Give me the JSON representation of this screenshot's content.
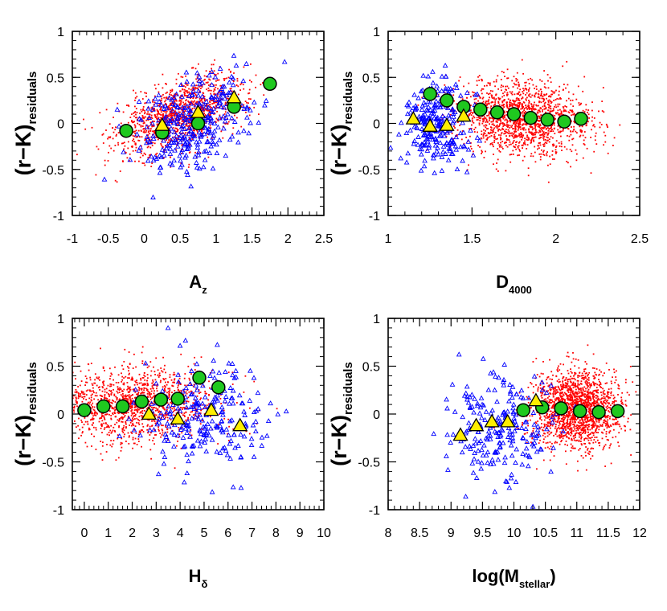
{
  "colors": {
    "dots": "#ff0000",
    "triangles_stroke": "#0000ff",
    "circle_fill": "#1fc81f",
    "triangle_fill": "#ffee00",
    "marker_stroke": "#000000"
  },
  "chart_data": [
    {
      "type": "scatter",
      "xlabel": {
        "main": "A",
        "sub": "z"
      },
      "ylabel": {
        "main": "(r−K)",
        "sub": "residuals"
      },
      "xlim": [
        -1,
        2.5
      ],
      "ylim": [
        -1,
        1
      ],
      "xticks": [
        -1,
        -0.5,
        0,
        0.5,
        1,
        1.5,
        2,
        2.5
      ],
      "xtick_labels": [
        "-1",
        "-0.5",
        "0",
        "0.5",
        "1",
        "1.5",
        "2",
        "2.5"
      ],
      "yticks": [
        1,
        0.5,
        0,
        -0.5,
        -1
      ],
      "ytick_labels": [
        "1",
        "0.5",
        "0",
        "-0.5",
        "-1"
      ],
      "scatter_red": {
        "center": [
          0.5,
          0.1
        ],
        "spread": [
          0.45,
          0.18
        ],
        "count": 1300,
        "slope": 0.25
      },
      "scatter_blue": {
        "center": [
          0.7,
          0.0
        ],
        "spread": [
          0.4,
          0.25
        ],
        "count": 320,
        "slope": 0.25
      },
      "series": [
        {
          "marker": "circle",
          "x": [
            -0.25,
            0.25,
            0.75,
            1.25,
            1.75
          ],
          "y": [
            -0.08,
            -0.1,
            0.0,
            0.18,
            0.43
          ]
        },
        {
          "marker": "triangle",
          "x": [
            0.25,
            0.75,
            1.25
          ],
          "y": [
            -0.02,
            0.12,
            0.28
          ]
        }
      ]
    },
    {
      "type": "scatter",
      "xlabel": {
        "main": "D",
        "sub": "4000"
      },
      "ylabel": {
        "main": "(r−K)",
        "sub": "residuals"
      },
      "xlim": [
        1,
        2.5
      ],
      "ylim": [
        -1,
        1
      ],
      "xticks": [
        1,
        1.5,
        2,
        2.5
      ],
      "xtick_labels": [
        "1",
        "1.5",
        "2",
        "2.5"
      ],
      "yticks": [
        1,
        0.5,
        0,
        -0.5,
        -1
      ],
      "ytick_labels": [
        "1",
        "0.5",
        "0",
        "-0.5",
        "-1"
      ],
      "scatter_red": {
        "center": [
          1.8,
          0.05
        ],
        "spread": [
          0.2,
          0.2
        ],
        "count": 1600,
        "slope": -0.1
      },
      "scatter_blue": {
        "center": [
          1.3,
          0.0
        ],
        "spread": [
          0.1,
          0.25
        ],
        "count": 260,
        "slope": 0.0
      },
      "series": [
        {
          "marker": "circle",
          "x": [
            1.25,
            1.35,
            1.45,
            1.55,
            1.65,
            1.75,
            1.85,
            1.95,
            2.05,
            2.15
          ],
          "y": [
            0.32,
            0.25,
            0.18,
            0.15,
            0.12,
            0.1,
            0.06,
            0.04,
            0.02,
            0.05
          ]
        },
        {
          "marker": "triangle",
          "x": [
            1.15,
            1.25,
            1.35,
            1.45
          ],
          "y": [
            0.05,
            -0.03,
            -0.02,
            0.08
          ]
        }
      ]
    },
    {
      "type": "scatter",
      "xlabel": {
        "main": "H",
        "sub": "δ"
      },
      "ylabel": {
        "main": "(r−K)",
        "sub": "residuals"
      },
      "xlim": [
        -0.5,
        10
      ],
      "ylim": [
        -1,
        1
      ],
      "xticks": [
        0,
        1,
        2,
        3,
        4,
        5,
        6,
        7,
        8,
        9,
        10
      ],
      "xtick_labels": [
        "0",
        "1",
        "2",
        "3",
        "4",
        "5",
        "6",
        "7",
        "8",
        "9",
        "10"
      ],
      "yticks": [
        1,
        0.5,
        0,
        -0.5,
        -1
      ],
      "ytick_labels": [
        "1",
        "0.5",
        "0",
        "-0.5",
        "-1"
      ],
      "scatter_red": {
        "center": [
          2.0,
          0.1
        ],
        "spread": [
          1.8,
          0.2
        ],
        "count": 1400,
        "slope": 0.0
      },
      "scatter_blue": {
        "center": [
          5.0,
          0.0
        ],
        "spread": [
          1.3,
          0.28
        ],
        "count": 240,
        "slope": 0.0
      },
      "series": [
        {
          "marker": "circle",
          "x": [
            0.0,
            0.8,
            1.6,
            2.4,
            3.2,
            3.9,
            4.8,
            5.6
          ],
          "y": [
            0.04,
            0.08,
            0.08,
            0.13,
            0.15,
            0.16,
            0.38,
            0.28
          ]
        },
        {
          "marker": "triangle",
          "x": [
            2.7,
            3.9,
            5.3,
            6.5
          ],
          "y": [
            0.0,
            -0.05,
            0.04,
            -0.12
          ]
        }
      ]
    },
    {
      "type": "scatter",
      "xlabel": {
        "main": "log(M",
        "sub": "stellar",
        "after": ")"
      },
      "ylabel": {
        "main": "(r−K)",
        "sub": "residuals"
      },
      "xlim": [
        8,
        12
      ],
      "ylim": [
        -1,
        1
      ],
      "xticks": [
        8,
        8.5,
        9,
        9.5,
        10,
        10.5,
        11,
        11.5,
        12
      ],
      "xtick_labels": [
        "8",
        "8.5",
        "9",
        "9.5",
        "10",
        "10.5",
        "11",
        "11.5",
        "12"
      ],
      "yticks": [
        1,
        0.5,
        0,
        -0.5,
        -1
      ],
      "ytick_labels": [
        "1",
        "0.5",
        "0",
        "-0.5",
        "-1"
      ],
      "scatter_red": {
        "center": [
          11.0,
          0.05
        ],
        "spread": [
          0.35,
          0.2
        ],
        "count": 1900,
        "slope": 0.0
      },
      "scatter_blue": {
        "center": [
          9.7,
          -0.15
        ],
        "spread": [
          0.4,
          0.28
        ],
        "count": 230,
        "slope": 0.0
      },
      "series": [
        {
          "marker": "circle",
          "x": [
            10.15,
            10.45,
            10.75,
            11.05,
            11.35,
            11.65
          ],
          "y": [
            0.04,
            0.07,
            0.06,
            0.03,
            0.02,
            0.03
          ]
        },
        {
          "marker": "triangle",
          "x": [
            9.15,
            9.4,
            9.65,
            9.9,
            10.35
          ],
          "y": [
            -0.22,
            -0.12,
            -0.08,
            -0.08,
            0.14
          ]
        }
      ]
    }
  ]
}
